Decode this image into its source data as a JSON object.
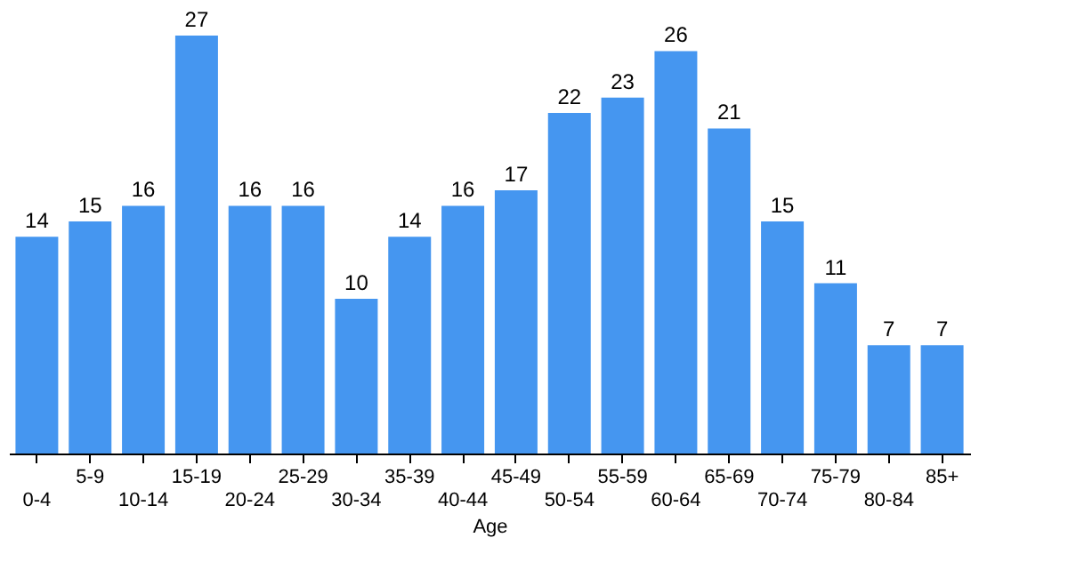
{
  "chart_data": {
    "type": "bar",
    "xlabel": "Age",
    "categories": [
      "0-4",
      "5-9",
      "10-14",
      "15-19",
      "20-24",
      "25-29",
      "30-34",
      "35-39",
      "40-44",
      "45-49",
      "50-54",
      "55-59",
      "60-64",
      "65-69",
      "70-74",
      "75-79",
      "80-84",
      "85+"
    ],
    "values": [
      14,
      15,
      16,
      27,
      16,
      16,
      10,
      14,
      16,
      17,
      22,
      23,
      26,
      21,
      15,
      11,
      7,
      7
    ],
    "color": "#4596f0",
    "data_labels": true,
    "grid": false
  }
}
